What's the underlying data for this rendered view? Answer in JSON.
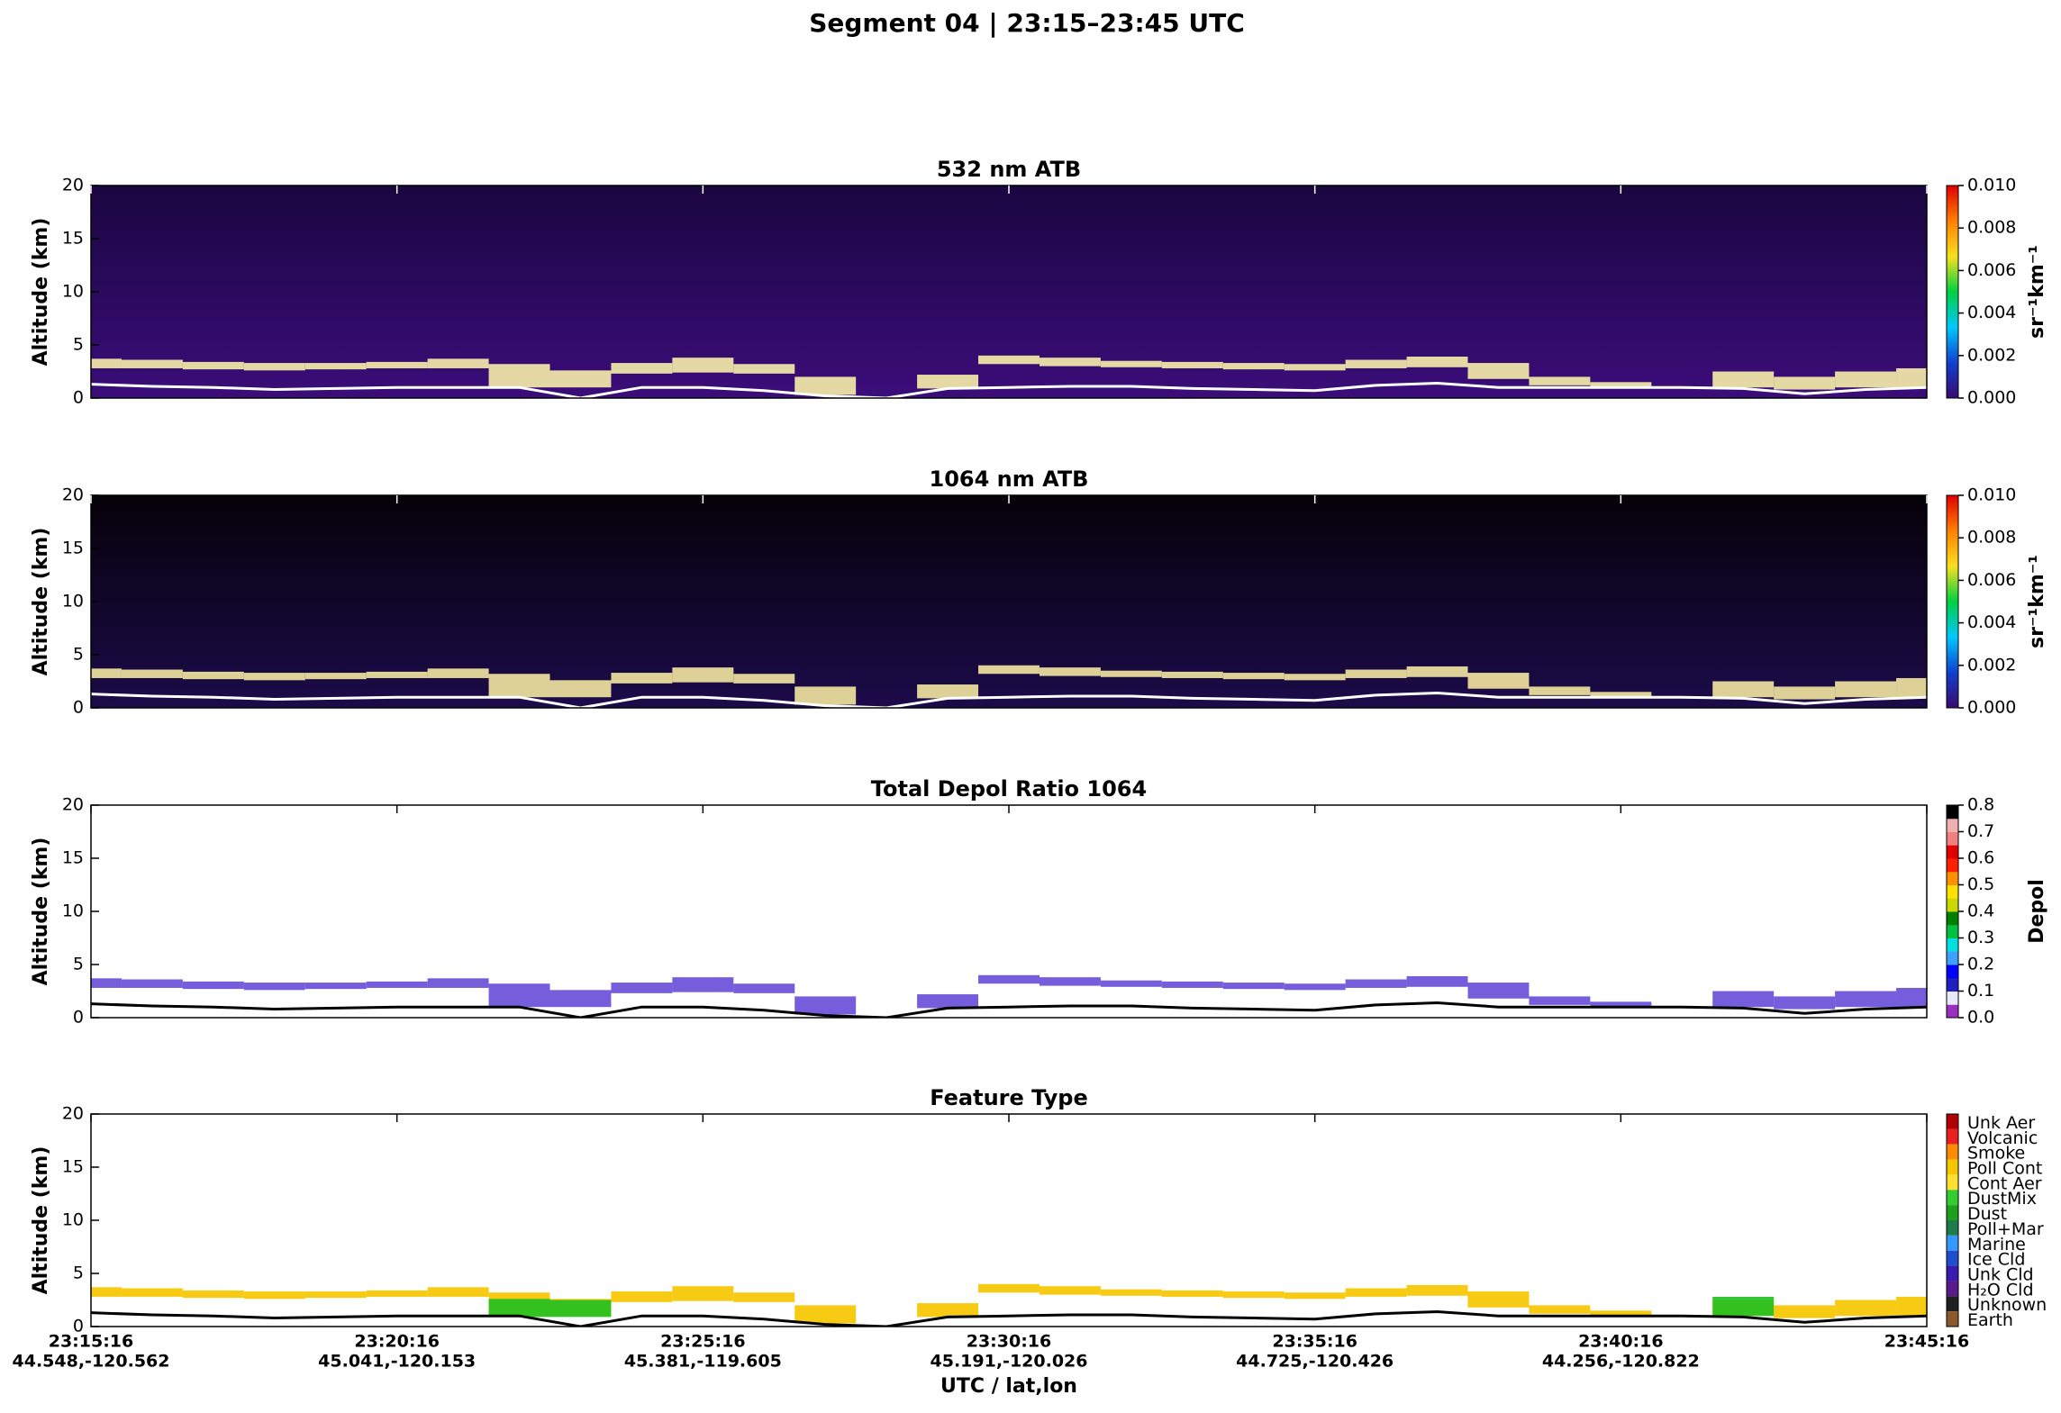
{
  "title": "Segment 04  |  23:15–23:45 UTC",
  "xlabel": "UTC / lat,lon",
  "xlim": [
    "23:15:16",
    "23:45:16"
  ],
  "xticks": [
    "23:15:16",
    "23:20:16",
    "23:25:16",
    "23:30:16",
    "23:35:16",
    "23:40:16",
    "23:45:16"
  ],
  "xtick_latlon": [
    "44.548,-120.562",
    "45.041,-120.153",
    "45.381,-119.605",
    "45.191,-120.026",
    "44.725,-120.426",
    "44.256,-120.822",
    null
  ],
  "x": [
    "23:15:16",
    "23:16:16",
    "23:17:16",
    "23:18:16",
    "23:19:16",
    "23:20:16",
    "23:21:16",
    "23:22:16",
    "23:23:16",
    "23:24:16",
    "23:25:16",
    "23:26:16",
    "23:27:16",
    "23:28:16",
    "23:29:16",
    "23:30:16",
    "23:31:16",
    "23:32:16",
    "23:33:16",
    "23:34:16",
    "23:35:16",
    "23:36:16",
    "23:37:16",
    "23:38:16",
    "23:39:16",
    "23:40:16",
    "23:41:16",
    "23:42:16",
    "23:43:16",
    "23:44:16",
    "23:45:16"
  ],
  "surface": [
    1.3,
    1.1,
    1.0,
    0.8,
    0.9,
    1.0,
    1.0,
    1.0,
    0.0,
    1.0,
    1.0,
    0.7,
    0.2,
    0.0,
    0.9,
    1.0,
    1.1,
    1.1,
    0.9,
    0.8,
    0.7,
    1.2,
    1.4,
    1.0,
    1.0,
    1.0,
    1.0,
    0.9,
    0.4,
    0.8,
    1.0
  ],
  "chart_data": [
    {
      "type": "curtain",
      "title": "532 nm ATB",
      "ylabel": "Altitude (km)",
      "ylim": [
        0,
        20
      ],
      "yticks": [
        0,
        5,
        10,
        15,
        20
      ],
      "background": [
        "#1a0640",
        "#3b0d7a"
      ],
      "surface_color": "#ffffff",
      "layers": [
        {
          "color": "#f3eaa8",
          "top": [
            3.7,
            3.6,
            3.4,
            3.3,
            3.3,
            3.4,
            3.7,
            3.2,
            2.6,
            3.3,
            3.8,
            3.2,
            2.0,
            null,
            2.2,
            4.0,
            3.8,
            3.5,
            3.4,
            3.3,
            3.2,
            3.6,
            3.9,
            3.3,
            2.0,
            1.5,
            null,
            2.5,
            2.0,
            2.5,
            2.8
          ],
          "base": [
            2.8,
            2.8,
            2.7,
            2.6,
            2.7,
            2.8,
            2.8,
            1.0,
            1.0,
            2.3,
            2.4,
            2.3,
            0.3,
            null,
            0.9,
            3.2,
            3.0,
            2.9,
            2.8,
            2.7,
            2.6,
            2.8,
            2.9,
            1.8,
            1.2,
            1.0,
            null,
            1.0,
            0.8,
            1.0,
            1.0
          ]
        }
      ],
      "colorbar": {
        "label": "sr⁻¹km⁻¹",
        "lim": [
          0,
          0.01
        ],
        "ticks": [
          {
            "value": 0,
            "label": "0.000"
          },
          {
            "value": 0.002,
            "label": "0.002"
          },
          {
            "value": 0.004,
            "label": "0.004"
          },
          {
            "value": 0.006,
            "label": "0.006"
          },
          {
            "value": 0.008,
            "label": "0.008"
          },
          {
            "value": 0.01,
            "label": "0.010"
          }
        ],
        "colormap": [
          "#3a0a6e",
          "#1040d0",
          "#00c8ff",
          "#00d040",
          "#f8e020",
          "#ff8000",
          "#e00000"
        ]
      }
    },
    {
      "type": "curtain",
      "title": "1064 nm ATB",
      "ylabel": "Altitude (km)",
      "ylim": [
        0,
        20
      ],
      "yticks": [
        0,
        5,
        10,
        15,
        20
      ],
      "background": [
        "#050208",
        "#1c0b4a"
      ],
      "surface_color": "#ffffff",
      "layers": [
        {
          "color": "#efe3a0",
          "top": [
            3.7,
            3.6,
            3.4,
            3.3,
            3.3,
            3.4,
            3.7,
            3.2,
            2.6,
            3.3,
            3.8,
            3.2,
            2.0,
            null,
            2.2,
            4.0,
            3.8,
            3.5,
            3.4,
            3.3,
            3.2,
            3.6,
            3.9,
            3.3,
            2.0,
            1.5,
            null,
            2.5,
            2.0,
            2.5,
            2.8
          ],
          "base": [
            2.8,
            2.8,
            2.7,
            2.6,
            2.7,
            2.8,
            2.8,
            1.0,
            1.0,
            2.3,
            2.4,
            2.3,
            0.3,
            null,
            0.9,
            3.2,
            3.0,
            2.9,
            2.8,
            2.7,
            2.6,
            2.8,
            2.9,
            1.8,
            1.2,
            1.0,
            null,
            1.0,
            0.8,
            1.0,
            1.0
          ]
        }
      ],
      "colorbar": {
        "label": "sr⁻¹km⁻¹",
        "lim": [
          0,
          0.01
        ],
        "ticks": [
          {
            "value": 0,
            "label": "0.000"
          },
          {
            "value": 0.002,
            "label": "0.002"
          },
          {
            "value": 0.004,
            "label": "0.004"
          },
          {
            "value": 0.006,
            "label": "0.006"
          },
          {
            "value": 0.008,
            "label": "0.008"
          },
          {
            "value": 0.01,
            "label": "0.010"
          }
        ],
        "colormap": [
          "#3a0a6e",
          "#1040d0",
          "#00c8ff",
          "#00d040",
          "#f8e020",
          "#ff8000",
          "#e00000"
        ]
      }
    },
    {
      "type": "curtain",
      "title": "Total Depol Ratio 1064",
      "ylabel": "Altitude (km)",
      "ylim": [
        0,
        20
      ],
      "yticks": [
        0,
        5,
        10,
        15,
        20
      ],
      "background": [
        "#ffffff",
        "#ffffff"
      ],
      "surface_color": "#000000",
      "layers": [
        {
          "color": "#6a4fd8",
          "top": [
            3.7,
            3.6,
            3.4,
            3.3,
            3.3,
            3.4,
            3.7,
            3.2,
            2.6,
            3.3,
            3.8,
            3.2,
            2.0,
            null,
            2.2,
            4.0,
            3.8,
            3.5,
            3.4,
            3.3,
            3.2,
            3.6,
            3.9,
            3.3,
            2.0,
            1.5,
            null,
            2.5,
            2.0,
            2.5,
            2.8
          ],
          "base": [
            2.8,
            2.8,
            2.7,
            2.6,
            2.7,
            2.8,
            2.8,
            1.0,
            1.0,
            2.3,
            2.4,
            2.3,
            0.3,
            null,
            0.9,
            3.2,
            3.0,
            2.9,
            2.8,
            2.7,
            2.6,
            2.8,
            2.9,
            1.8,
            1.2,
            1.0,
            null,
            1.0,
            0.8,
            1.0,
            1.0
          ]
        }
      ],
      "colorbar": {
        "label": "Depol",
        "lim": [
          0,
          0.8
        ],
        "ticks": [
          {
            "value": 0,
            "label": "0.0"
          },
          {
            "value": 0.1,
            "label": "0.1"
          },
          {
            "value": 0.2,
            "label": "0.2"
          },
          {
            "value": 0.3,
            "label": "0.3"
          },
          {
            "value": 0.4,
            "label": "0.4"
          },
          {
            "value": 0.5,
            "label": "0.5"
          },
          {
            "value": 0.6,
            "label": "0.6"
          },
          {
            "value": 0.7,
            "label": "0.7"
          },
          {
            "value": 0.8,
            "label": "0.8"
          }
        ],
        "colormap": [
          "#9b30c0",
          "#e8e8f8",
          "#2020c0",
          "#0000ff",
          "#40a0ff",
          "#00e0e0",
          "#00c040",
          "#008000",
          "#c8d800",
          "#ffe000",
          "#ff9000",
          "#ff2000",
          "#e00000",
          "#f08080",
          "#f0b0b0",
          "#000000"
        ],
        "discrete": true
      }
    },
    {
      "type": "curtain",
      "title": "Feature Type",
      "ylabel": "Altitude (km)",
      "ylim": [
        0,
        20
      ],
      "yticks": [
        0,
        5,
        10,
        15,
        20
      ],
      "background": [
        "#ffffff",
        "#ffffff"
      ],
      "surface_color": "#000000",
      "layers": [
        {
          "color": "#f6c700",
          "top": [
            3.7,
            3.6,
            3.4,
            3.3,
            3.3,
            3.4,
            3.7,
            3.2,
            2.6,
            3.3,
            3.8,
            3.2,
            2.0,
            null,
            2.2,
            4.0,
            3.8,
            3.5,
            3.4,
            3.3,
            3.2,
            3.6,
            3.9,
            3.3,
            2.0,
            1.5,
            null,
            2.5,
            2.0,
            2.5,
            2.8
          ],
          "base": [
            2.8,
            2.8,
            2.7,
            2.6,
            2.7,
            2.8,
            2.8,
            1.0,
            1.0,
            2.3,
            2.4,
            2.3,
            0.3,
            null,
            0.9,
            3.2,
            3.0,
            2.9,
            2.8,
            2.7,
            2.6,
            2.8,
            2.9,
            1.8,
            1.2,
            1.0,
            null,
            1.0,
            0.8,
            1.0,
            1.0
          ]
        },
        {
          "color": "#22c022",
          "top": [
            null,
            null,
            null,
            null,
            null,
            null,
            null,
            2.6,
            2.5,
            null,
            null,
            null,
            null,
            null,
            null,
            null,
            null,
            null,
            null,
            null,
            null,
            null,
            null,
            null,
            null,
            null,
            null,
            2.8,
            null,
            null,
            null
          ],
          "base": [
            null,
            null,
            null,
            null,
            null,
            null,
            null,
            0.9,
            0.9,
            null,
            null,
            null,
            null,
            null,
            null,
            null,
            null,
            null,
            null,
            null,
            null,
            null,
            null,
            null,
            null,
            null,
            null,
            1.0,
            null,
            null,
            null
          ]
        }
      ],
      "colorbar": {
        "categories": [
          "Unk Aer",
          "Volcanic",
          "Smoke",
          "Poll Cont",
          "Cont Aer",
          "DustMix",
          "Dust",
          "Poll+Mar",
          "Marine",
          "Ice Cld",
          "Unk Cld",
          "H₂O Cld",
          "Unknown",
          "Earth"
        ],
        "colors": [
          "#b00000",
          "#e82020",
          "#ff8c00",
          "#f6c700",
          "#ffe030",
          "#33cc33",
          "#1ea01e",
          "#1f7a4c",
          "#3399ff",
          "#1f4fd0",
          "#3a1ab0",
          "#5a1a8a",
          "#202020",
          "#8b5a2b"
        ]
      }
    }
  ]
}
